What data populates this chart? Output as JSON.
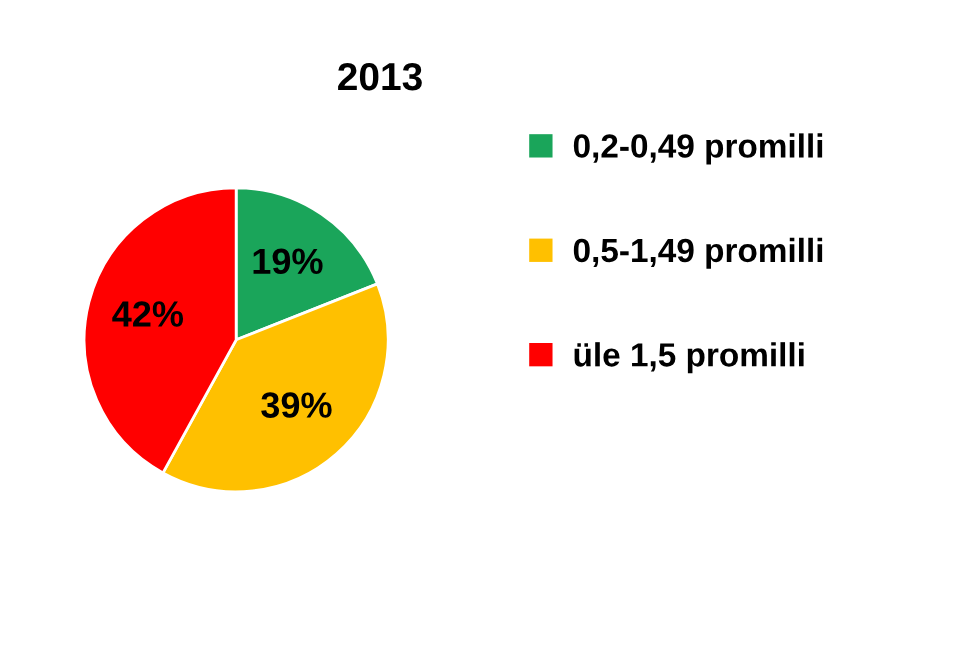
{
  "chart_data": {
    "type": "pie",
    "title": "2013",
    "categories": [
      "0,2-0,49 promilli",
      "0,5-1,49 promilli",
      "üle 1,5 promilli"
    ],
    "values": [
      19,
      39,
      42
    ],
    "colors": [
      "#1aa55a",
      "#ffc000",
      "#ff0000"
    ],
    "value_labels": [
      "19%",
      "39%",
      "42%"
    ],
    "legend": "right"
  }
}
